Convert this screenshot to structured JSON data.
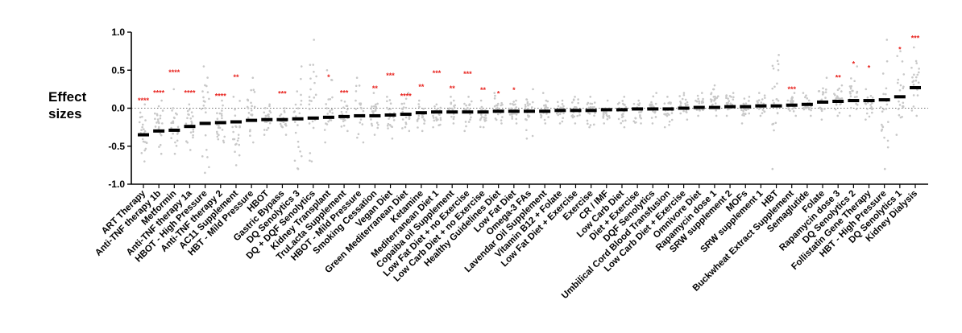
{
  "chart_data": {
    "type": "scatter",
    "ylabel": "Effect sizes",
    "ylim": [
      -1.0,
      1.0
    ],
    "yticks": [
      "1.0",
      "0.5",
      "0.0",
      "-0.5",
      "-1.0"
    ],
    "ytick_values": [
      1.0,
      0.5,
      0.0,
      -0.5,
      -1.0
    ],
    "reference_line": 0.0,
    "colors": {
      "median": "#000000",
      "points": "#c8c8c8",
      "significance": "#e8231e"
    },
    "categories": [
      "ART Therapy",
      "Anti-TNF therapy 1b",
      "Metformin",
      "Anti-TNF therapy 1a",
      "HBOT - High Pressure",
      "Anti-TNF therapy 2",
      "AC11 Supplement",
      "HBT - Mild Pressure",
      "HBOT",
      "Gastric Bypass",
      "DQ Senolytics 3",
      "DQ + DQF Senolytics",
      "Kidney Transplant",
      "TruLacta Supplement",
      "HBOT - Mild Pressure",
      "Smoking Cessation",
      "Vegan Diet",
      "Green Mediterranean Diet",
      "Ketamine",
      "Mediterranean Diet 1",
      "Copaiba oil Supplement",
      "Low Fat Diet + no Exercise",
      "Low Carb Diet + no Exercise",
      "Healthy Guidelines Diet",
      "Low Fat Diet",
      "Omega-3 FAs",
      "Lavendar Oil Supplement",
      "Vitamin B12 + Folate",
      "Low Fat Diet + Exercise",
      "Exercise",
      "CR / IMF",
      "Low Carb Diet",
      "Diet + Exercise",
      "DQF Senolytics",
      "Umbilical Cord Blood Transfusion",
      "Low Carb Diet + Exercise",
      "Omnivore Diet",
      "Rapamycin dose 1",
      "SRW supplement 2",
      "MOFs",
      "SRW supplement 1",
      "HBT",
      "Buckwheat Extract Supplement",
      "Semaglutide",
      "Folate",
      "Rapamycin dose 3",
      "DQ Senolytics 2",
      "Follistatin Gene Therapy",
      "HBT - High Pressure",
      "DQ Senolytics 1",
      "Kidney Dialysis"
    ],
    "medians": [
      -0.35,
      -0.3,
      -0.29,
      -0.24,
      -0.2,
      -0.19,
      -0.18,
      -0.16,
      -0.15,
      -0.15,
      -0.14,
      -0.13,
      -0.12,
      -0.11,
      -0.1,
      -0.1,
      -0.09,
      -0.08,
      -0.06,
      -0.05,
      -0.05,
      -0.05,
      -0.05,
      -0.04,
      -0.04,
      -0.04,
      -0.04,
      -0.03,
      -0.03,
      -0.03,
      -0.02,
      -0.02,
      -0.01,
      -0.01,
      -0.01,
      0.0,
      0.01,
      0.01,
      0.02,
      0.02,
      0.03,
      0.03,
      0.04,
      0.05,
      0.08,
      0.09,
      0.1,
      0.1,
      0.11,
      0.15,
      0.27
    ],
    "point_spread": [
      [
        -0.7,
        0.05
      ],
      [
        -0.6,
        0.1
      ],
      [
        -0.6,
        0.25
      ],
      [
        -0.55,
        0.05
      ],
      [
        -0.85,
        0.55
      ],
      [
        -0.45,
        0.1
      ],
      [
        -0.75,
        0.15
      ],
      [
        -0.45,
        0.4
      ],
      [
        -0.35,
        0.05
      ],
      [
        -0.35,
        0.0
      ],
      [
        -0.8,
        0.55
      ],
      [
        -0.7,
        0.9
      ],
      [
        -0.45,
        0.5
      ],
      [
        -0.3,
        0.1
      ],
      [
        -0.45,
        0.4
      ],
      [
        -0.35,
        0.2
      ],
      [
        -0.4,
        0.15
      ],
      [
        -0.3,
        0.2
      ],
      [
        -0.3,
        0.1
      ],
      [
        -0.25,
        0.05
      ],
      [
        -0.2,
        0.15
      ],
      [
        -0.3,
        0.15
      ],
      [
        -0.25,
        0.1
      ],
      [
        -0.2,
        0.2
      ],
      [
        -0.2,
        0.1
      ],
      [
        -0.4,
        0.25
      ],
      [
        -0.2,
        0.2
      ],
      [
        -0.2,
        0.1
      ],
      [
        -0.2,
        0.15
      ],
      [
        -0.25,
        0.15
      ],
      [
        -0.2,
        0.1
      ],
      [
        -0.25,
        0.15
      ],
      [
        -0.2,
        0.1
      ],
      [
        -0.2,
        0.2
      ],
      [
        -0.25,
        0.15
      ],
      [
        -0.15,
        0.2
      ],
      [
        -0.1,
        0.2
      ],
      [
        -0.1,
        0.3
      ],
      [
        -0.1,
        0.2
      ],
      [
        -0.2,
        0.15
      ],
      [
        -0.1,
        0.2
      ],
      [
        -0.8,
        0.7
      ],
      [
        -0.1,
        0.2
      ],
      [
        -0.1,
        0.2
      ],
      [
        -0.15,
        0.4
      ],
      [
        -0.1,
        0.3
      ],
      [
        -0.1,
        0.55
      ],
      [
        -0.15,
        0.25
      ],
      [
        -0.8,
        0.9
      ],
      [
        -0.35,
        0.75
      ],
      [
        -0.1,
        0.8
      ]
    ],
    "significance": [
      "****",
      "****",
      "****",
      "****",
      "",
      "****",
      "**",
      "",
      "",
      "***",
      "",
      "",
      "*",
      "***",
      "",
      "**",
      "***",
      "****",
      "**",
      "***",
      "**",
      "***",
      "**",
      "*",
      "*",
      "",
      "",
      "",
      "",
      "",
      "",
      "",
      "",
      "",
      "",
      "",
      "",
      "",
      "",
      "",
      "",
      "",
      "***",
      "",
      "",
      "**",
      "*",
      "*",
      "",
      "*",
      "***"
    ],
    "significance_levels": [
      0.1,
      0.2,
      0.47,
      0.2,
      null,
      0.16,
      0.41,
      null,
      null,
      0.19,
      null,
      null,
      0.41,
      0.2,
      null,
      0.26,
      0.43,
      0.16,
      0.28,
      0.46,
      0.26,
      0.45,
      0.24,
      0.19,
      0.24,
      null,
      null,
      null,
      null,
      null,
      null,
      null,
      null,
      null,
      null,
      null,
      null,
      null,
      null,
      null,
      null,
      null,
      0.25,
      null,
      null,
      0.4,
      0.58,
      0.53,
      null,
      0.77,
      0.92
    ]
  }
}
